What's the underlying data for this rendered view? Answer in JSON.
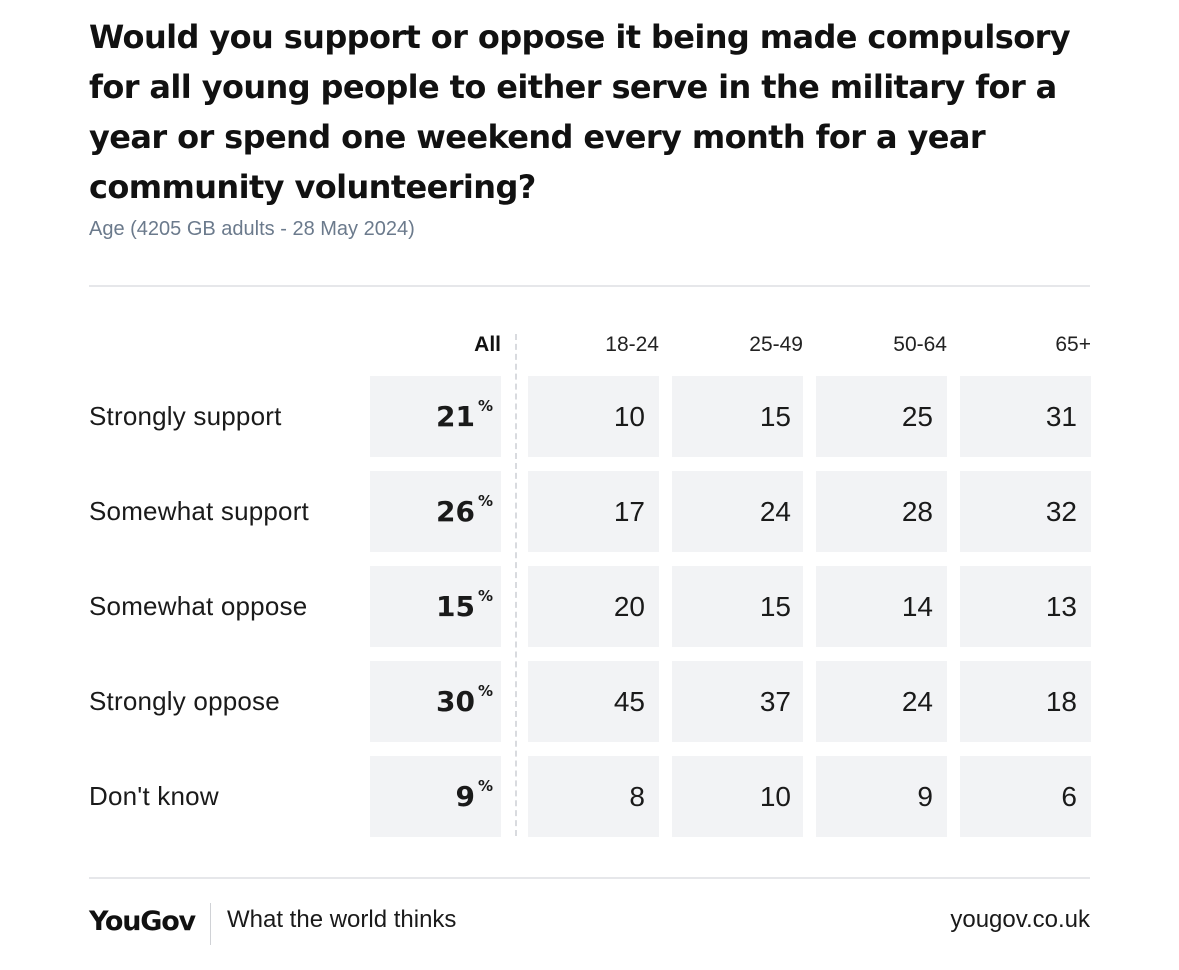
{
  "chart_data": {
    "type": "table",
    "title": "Would you support or oppose it being made compulsory for all young people to either serve in the military for a year or spend one weekend every month for a year community volunteering?",
    "subtitle": "Age (4205 GB adults - 28 May 2024)",
    "columns": [
      "All",
      "18-24",
      "25-49",
      "50-64",
      "65+"
    ],
    "unit_symbol": "%",
    "rows": [
      {
        "label": "Strongly support",
        "values": [
          21,
          10,
          15,
          25,
          31
        ]
      },
      {
        "label": "Somewhat support",
        "values": [
          26,
          17,
          24,
          28,
          32
        ]
      },
      {
        "label": "Somewhat oppose",
        "values": [
          15,
          20,
          15,
          14,
          13
        ]
      },
      {
        "label": "Strongly oppose",
        "values": [
          30,
          45,
          37,
          24,
          18
        ]
      },
      {
        "label": "Don't know",
        "values": [
          9,
          8,
          10,
          9,
          6
        ]
      }
    ]
  },
  "footer": {
    "brand": "YouGov",
    "tagline": "What the world thinks",
    "url": "yougov.co.uk"
  },
  "colors": {
    "cell_background": "#f2f3f5",
    "subtitle": "#6b7a8c",
    "text": "#111111"
  }
}
